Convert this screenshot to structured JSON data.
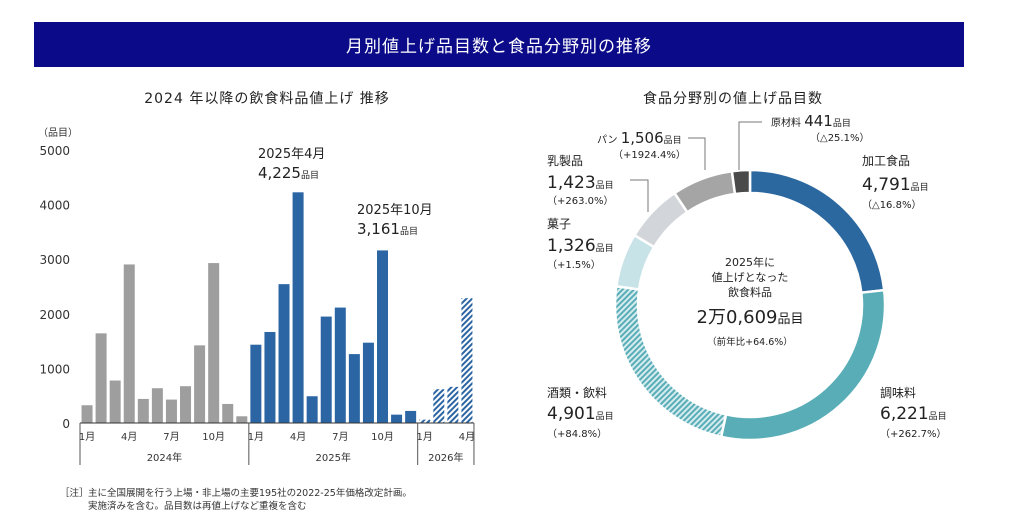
{
  "banner_title": "月別値上げ品目数と食品分野別の推移",
  "chart_data": [
    {
      "type": "bar",
      "title": "2024 年以降の飲食料品値上げ  推移",
      "ylabel": "（品目）",
      "ylim": [
        0,
        5000
      ],
      "yticks": [
        "0",
        "1000",
        "2000",
        "3000",
        "4000",
        "5000"
      ],
      "grid": false,
      "years": [
        {
          "label": "2024年",
          "ticks": [
            "1月",
            "4月",
            "7月",
            "10月"
          ],
          "values": [
            325,
            1642,
            778,
            2904,
            441,
            637,
            429,
            674,
            1422,
            2929,
            349,
            123
          ],
          "style": "gray"
        },
        {
          "label": "2025年",
          "ticks": [
            "1月",
            "4月",
            "7月",
            "10月"
          ],
          "values": [
            1434,
            1667,
            2543,
            4225,
            490,
            1949,
            2114,
            1262,
            1471,
            3161,
            153,
            221
          ],
          "style": "blue"
        },
        {
          "label": "2026年",
          "ticks": [
            "1月",
            "4月"
          ],
          "values": [
            61,
            619,
            662,
            2286
          ],
          "style": "hatched"
        }
      ],
      "annotations": [
        {
          "label": "2025年4月",
          "value": "4,225",
          "unit": "品目"
        },
        {
          "label": "2025年10月",
          "value": "3,161",
          "unit": "品目"
        }
      ],
      "colors": {
        "2024": "#9e9e9e",
        "2025": "#2b65a3",
        "2026": "#2b65a3"
      }
    },
    {
      "type": "pie",
      "title": "食品分野別の値上げ品目数",
      "center": {
        "line1": "2025年に",
        "line2": "値上げとなった",
        "line3": "飲食料品",
        "total": "2万0,609",
        "unit": "品目",
        "yoy": "（前年比+64.6%）"
      },
      "slices": [
        {
          "name": "加工食品",
          "value": 4791,
          "value_label": "4,791",
          "change": "（△16.8%）",
          "color": "#2b689f"
        },
        {
          "name": "調味料",
          "value": 6221,
          "value_label": "6,221",
          "change": "（+262.7%）",
          "color": "#58adb7"
        },
        {
          "name": "酒類・飲料",
          "value": 4901,
          "value_label": "4,901",
          "change": "（+84.8%）",
          "color": "#58adb7",
          "hatched": true
        },
        {
          "name": "菓子",
          "value": 1326,
          "value_label": "1,326",
          "change": "（+1.5%）",
          "color": "#c8e3e8"
        },
        {
          "name": "乳製品",
          "value": 1423,
          "value_label": "1,423",
          "change": "（+263.0%）",
          "color": "#d2d5d9"
        },
        {
          "name": "パン",
          "value": 1506,
          "value_label": "1,506",
          "change": "（+1924.4%）",
          "color": "#a5a5a5"
        },
        {
          "name": "原材料",
          "value": 441,
          "value_label": "441",
          "change": "（△25.1%）",
          "color": "#4a4a4a"
        }
      ],
      "unit": "品目"
    }
  ],
  "note": {
    "prefix": "［注］",
    "line1": "主に全国展開を行う上場・非上場の主要195社の2022-25年価格改定計画。",
    "line2": "実施済みを含む。品目数は再値上げなど重複を含む"
  }
}
